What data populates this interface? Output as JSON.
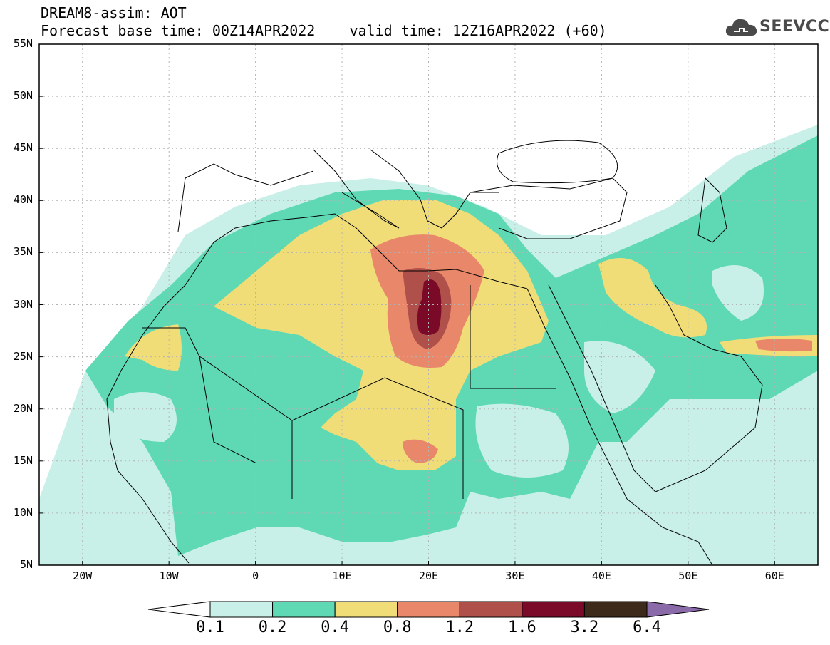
{
  "title": {
    "line1": "DREAM8-assim: AOT",
    "line2": "Forecast base time: 00Z14APR2022    valid time: 12Z16APR2022 (+60)"
  },
  "logo": {
    "text": "SEEVCCC",
    "icon": "cloud-icon"
  },
  "map": {
    "lon_range": [
      -25,
      65
    ],
    "lat_range": [
      5,
      55
    ],
    "lon_ticks": [
      {
        "value": -20,
        "label": "20W"
      },
      {
        "value": -10,
        "label": "10W"
      },
      {
        "value": 0,
        "label": "0"
      },
      {
        "value": 10,
        "label": "10E"
      },
      {
        "value": 20,
        "label": "20E"
      },
      {
        "value": 30,
        "label": "30E"
      },
      {
        "value": 40,
        "label": "40E"
      },
      {
        "value": 50,
        "label": "50E"
      },
      {
        "value": 60,
        "label": "60E"
      }
    ],
    "lat_ticks": [
      {
        "value": 55,
        "label": "55N"
      },
      {
        "value": 50,
        "label": "50N"
      },
      {
        "value": 45,
        "label": "45N"
      },
      {
        "value": 40,
        "label": "40N"
      },
      {
        "value": 35,
        "label": "35N"
      },
      {
        "value": 30,
        "label": "30N"
      },
      {
        "value": 25,
        "label": "25N"
      },
      {
        "value": 20,
        "label": "20N"
      },
      {
        "value": 15,
        "label": "15N"
      },
      {
        "value": 10,
        "label": "10N"
      },
      {
        "value": 5,
        "label": "5N"
      }
    ],
    "grid": true
  },
  "colorbar": {
    "labels": [
      "0.1",
      "0.2",
      "0.4",
      "0.8",
      "1.2",
      "1.6",
      "3.2",
      "6.4"
    ],
    "colors": [
      "#ffffff",
      "#c8f0e8",
      "#5ed9b4",
      "#f0dd78",
      "#e8876a",
      "#b0504a",
      "#7a0a28",
      "#3e2a1a",
      "#8a6aa8"
    ]
  }
}
